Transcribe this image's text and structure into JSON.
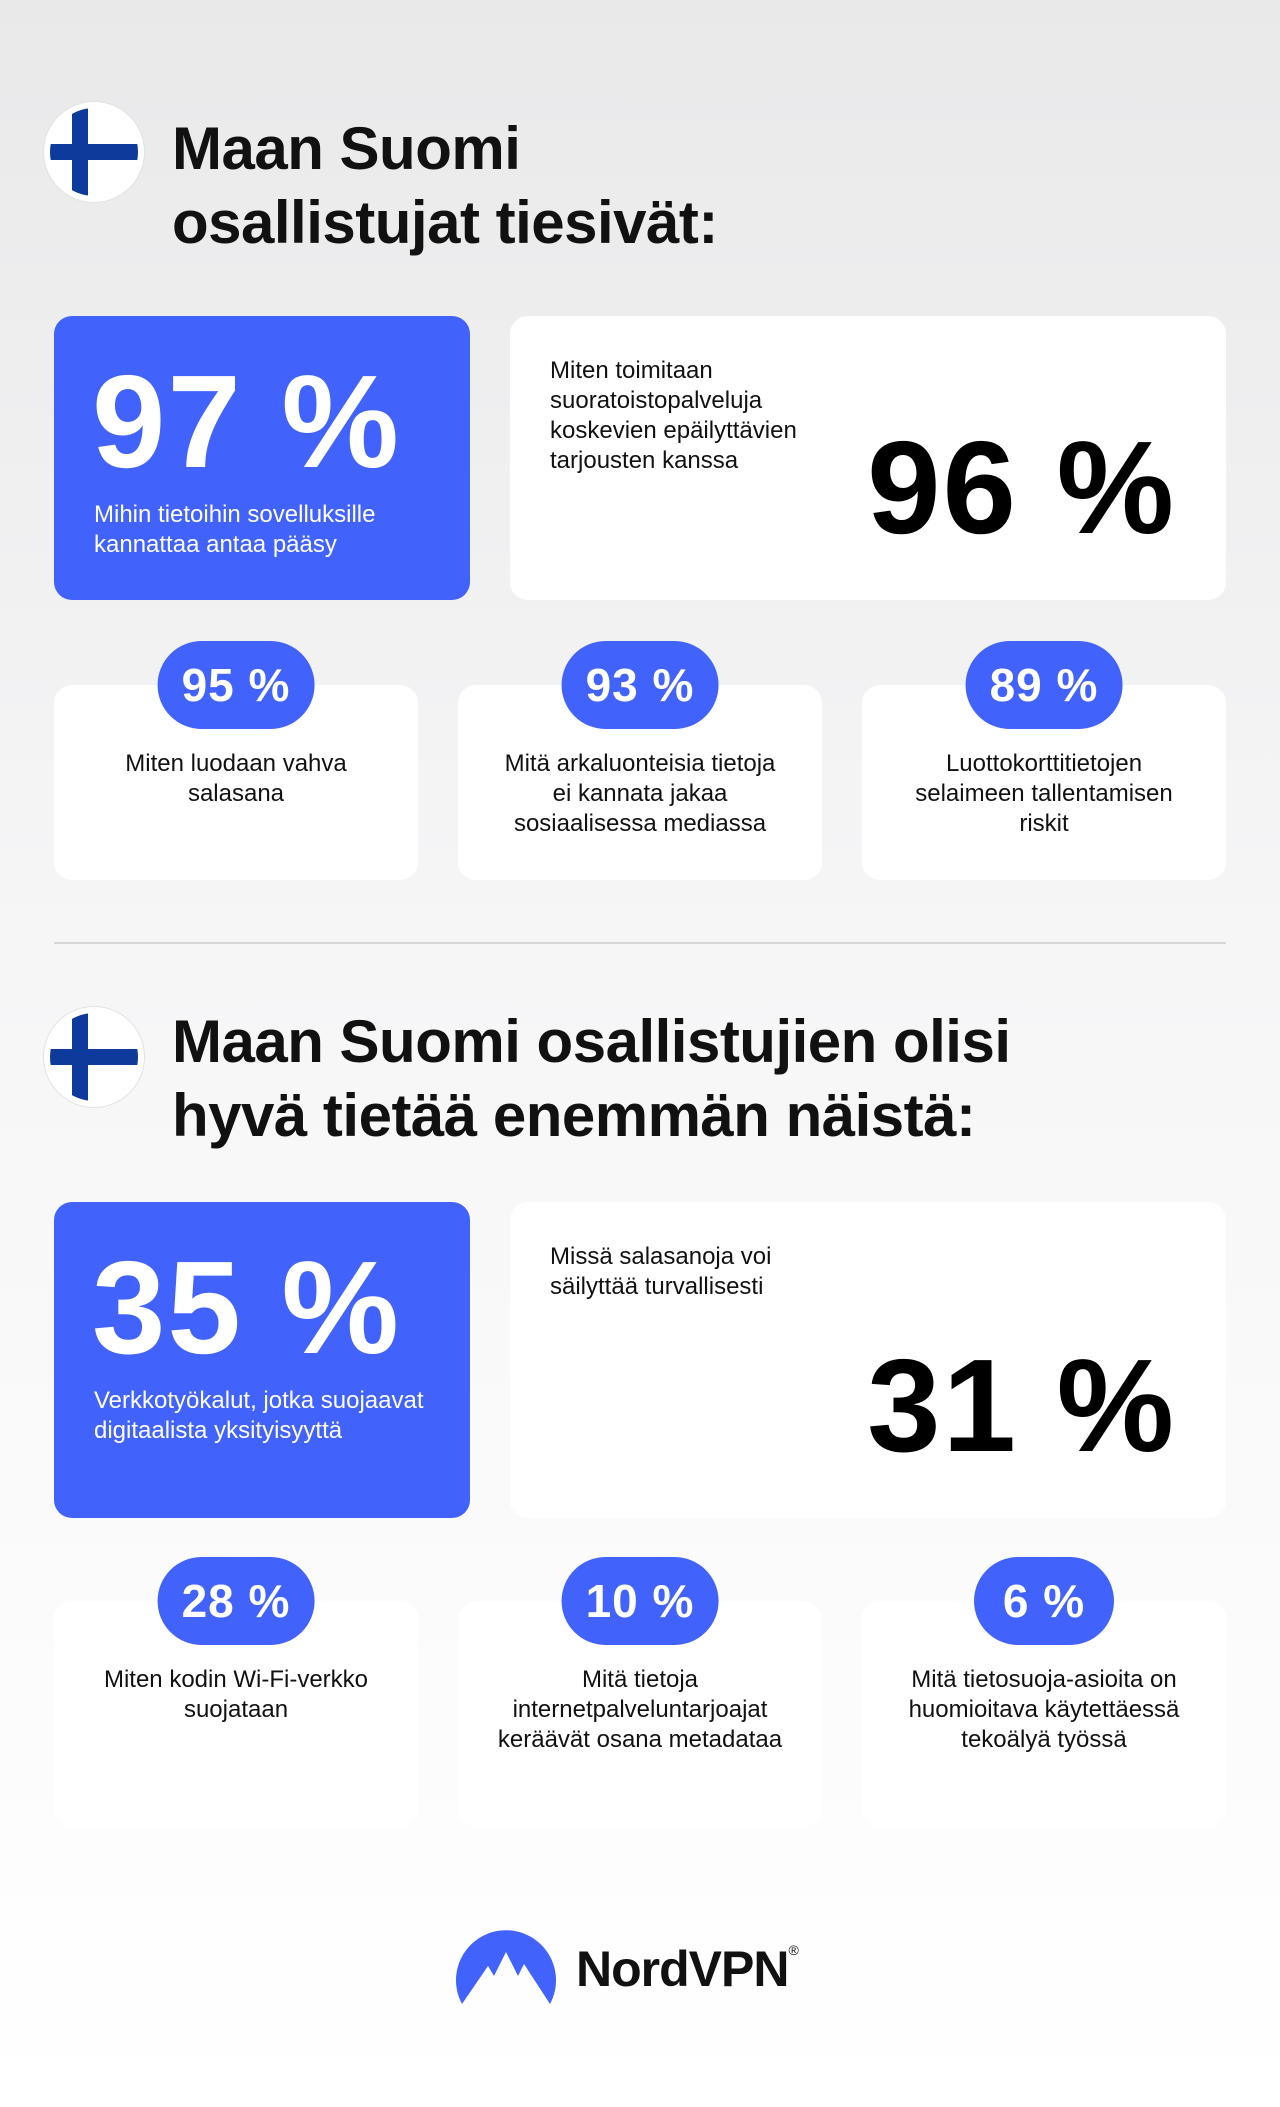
{
  "sections": [
    {
      "title_lines": [
        "Maan Suomi",
        "osallistujat tiesivät:"
      ],
      "featured": [
        {
          "value": "97 %",
          "label": "Mihin tietoihin sovelluksille kannattaa antaa pääsy"
        },
        {
          "value": "96 %",
          "label": "Miten toimitaan suoratoistopalveluja koskevien epäilyttävien tarjousten kanssa"
        }
      ],
      "items": [
        {
          "value": "95 %",
          "label": "Miten luodaan vahva salasana"
        },
        {
          "value": "93 %",
          "label": "Mitä arkaluonteisia tietoja ei kannata jakaa sosiaalisessa mediassa"
        },
        {
          "value": "89 %",
          "label": "Luottokorttitietojen selaimeen tallentamisen riskit"
        }
      ]
    },
    {
      "title_lines": [
        "Maan Suomi osallistujien olisi",
        "hyvä tietää enemmän näistä:"
      ],
      "featured": [
        {
          "value": "35 %",
          "label": "Verkkotyökalut, jotka suojaavat digitaalista yksityisyyttä"
        },
        {
          "value": "31 %",
          "label": "Missä salasanoja voi säilyttää turvallisesti"
        }
      ],
      "items": [
        {
          "value": "28 %",
          "label": "Miten kodin Wi-Fi-verkko suojataan"
        },
        {
          "value": "10 %",
          "label": "Mitä tietoja internetpalveluntarjoajat keräävät osana metadataa"
        },
        {
          "value": "6 %",
          "label": "Mitä tietosuoja-asioita on huomioitava käytettäessä tekoälyä työssä"
        }
      ]
    }
  ],
  "logo": {
    "name": "NordVPN",
    "mark": "®"
  }
}
